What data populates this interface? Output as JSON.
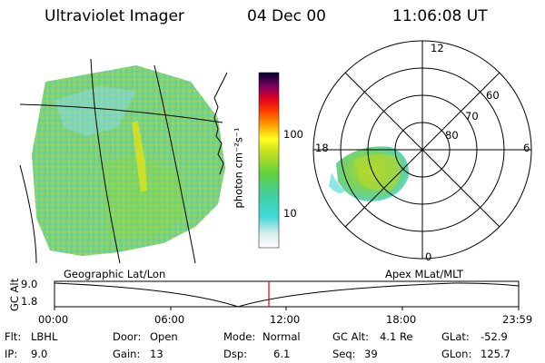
{
  "header": {
    "instrument": "Ultraviolet Imager",
    "date": "04 Dec 00",
    "time": "11:06:08 UT"
  },
  "colorbar": {
    "unit_label": "photon cm⁻²s⁻¹",
    "ticks": [
      "100",
      "10"
    ]
  },
  "polar_plot": {
    "mlt_labels": {
      "top": "12",
      "bottom": "0",
      "left": "18",
      "right": "6"
    },
    "mlat_labels": [
      "60",
      "70",
      "80"
    ]
  },
  "projection_labels": {
    "left": "Geographic Lat/Lon",
    "right": "Apex MLat/MLT"
  },
  "altitude_plot": {
    "ylabel": "GC Alt",
    "ytick_top": "9.0",
    "ytick_bottom": "1.8",
    "time_ticks": [
      "00:00",
      "06:00",
      "12:00",
      "18:00",
      "23:59"
    ],
    "current_time_marker_color": "#e00000"
  },
  "status": {
    "flt_label": "Flt:",
    "flt_value": "LBHL",
    "ip_label": "IP:",
    "ip_value": "9.0",
    "door_label": "Door:",
    "door_value": "Open",
    "gain_label": "Gain:",
    "gain_value": "13",
    "mode_label": "Mode:",
    "mode_value": "Normal",
    "dsp_label": "Dsp:",
    "dsp_value": "6.1",
    "gcalt_label": "GC Alt:",
    "gcalt_value": "4.1 Re",
    "seq_label": "Seq:",
    "seq_value": "39",
    "glat_label": "GLat:",
    "glat_value": "-52.9",
    "glon_label": "GLon:",
    "glon_value": "125.7"
  }
}
